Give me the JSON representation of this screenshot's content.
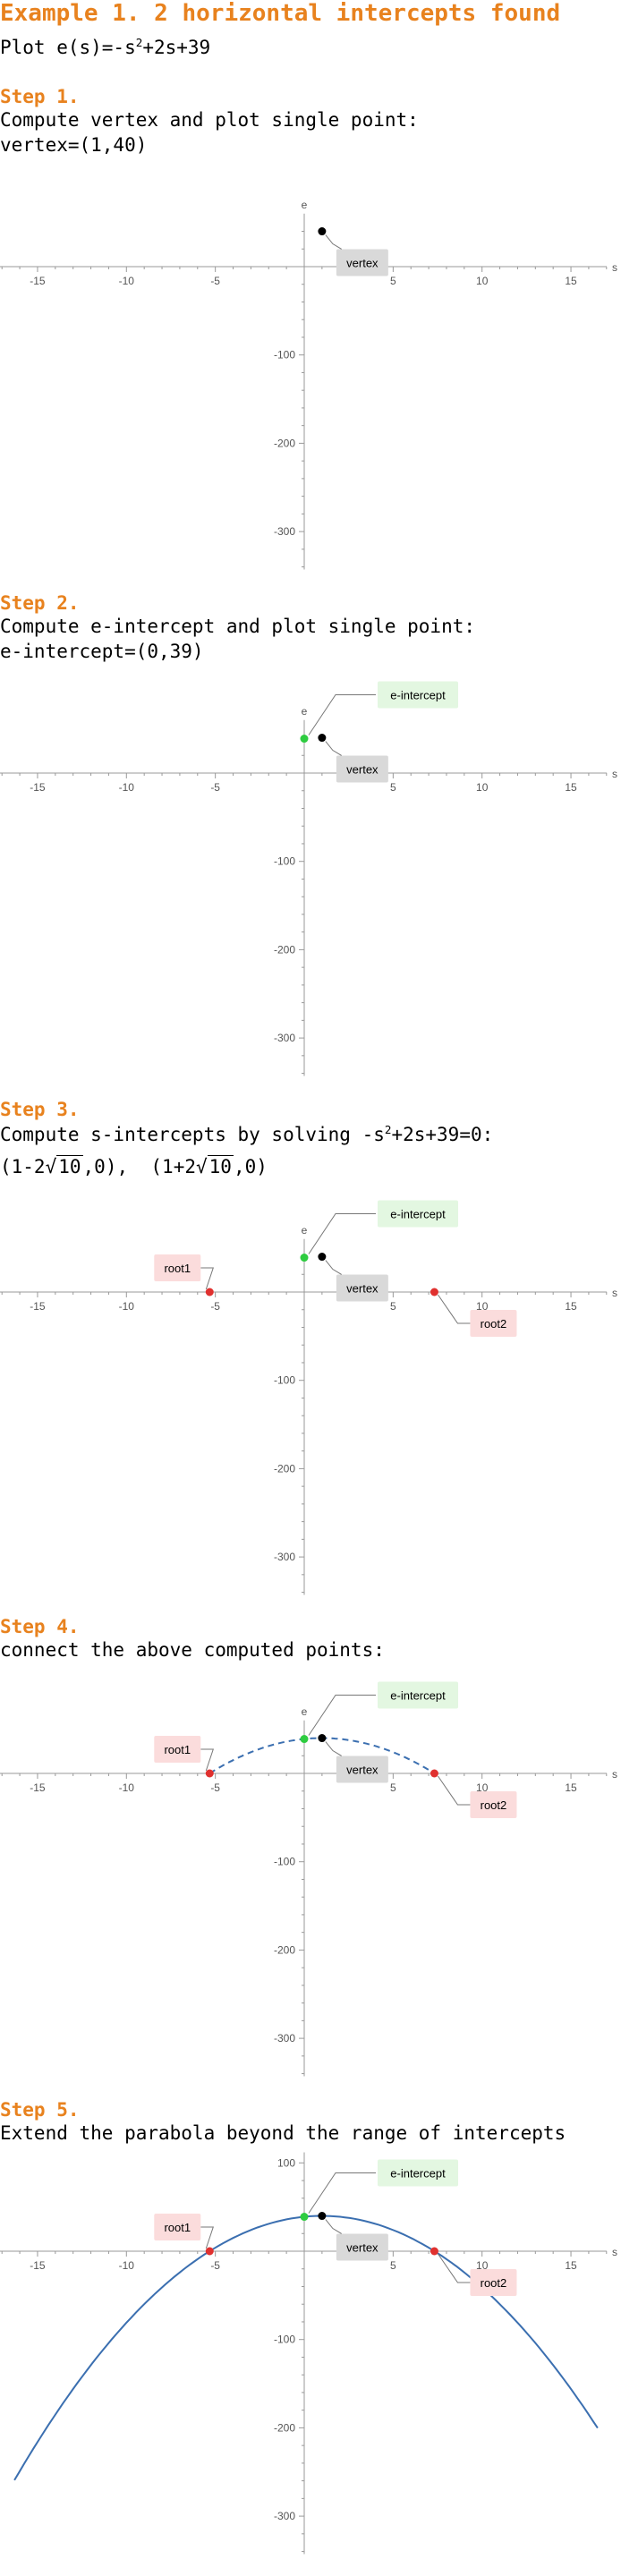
{
  "header": {
    "title": "Example 1. 2 horizontal intercepts found",
    "plot_prefix": "Plot e(s)=-s",
    "plot_exp": "2",
    "plot_suffix": "+2s+39"
  },
  "steps": [
    {
      "heading": "Step 1.",
      "lines": [
        "Compute vertex and plot single point:",
        "vertex=(1,40)"
      ]
    },
    {
      "heading": "Step 2.",
      "lines": [
        "Compute e-intercept and plot single point:",
        "e-intercept=(0,39)"
      ]
    },
    {
      "heading": "Step 3.",
      "line1_prefix": "Compute s-intercepts by solving -s",
      "line1_exp": "2",
      "line1_suffix": "+2s+39=0:",
      "root1_prefix": "(1-2",
      "root1_radical": "10",
      "root1_suffix": ",0),",
      "root2_prefix": "(1+2",
      "root2_radical": "10",
      "root2_suffix": ",0)"
    },
    {
      "heading": "Step 4.",
      "lines": [
        "connect the above computed points:"
      ]
    },
    {
      "heading": "Step 5.",
      "lines": [
        "Extend the parabola beyond the range of intercepts"
      ]
    }
  ],
  "colors": {
    "accent": "#e8821e",
    "curve": "#3b6fb0",
    "vertex": "#000000",
    "e_intercept": "#2ecc40",
    "root": "#e0312f"
  },
  "chart_data": [
    {
      "type": "scatter",
      "step": 1,
      "xlabel": "s",
      "ylabel": "e",
      "x_ticks": [
        -15,
        -10,
        -5,
        5,
        10,
        15
      ],
      "y_ticks": [
        -100,
        -200,
        -300
      ],
      "points": [
        {
          "name": "vertex",
          "x": 1,
          "y": 40,
          "label": "vertex"
        }
      ],
      "curve": "none"
    },
    {
      "type": "scatter",
      "step": 2,
      "xlabel": "s",
      "ylabel": "e",
      "x_ticks": [
        -15,
        -10,
        -5,
        5,
        10,
        15
      ],
      "y_ticks": [
        -100,
        -200,
        -300
      ],
      "points": [
        {
          "name": "vertex",
          "x": 1,
          "y": 40,
          "label": "vertex"
        },
        {
          "name": "e-intercept",
          "x": 0,
          "y": 39,
          "label": "e-intercept"
        }
      ],
      "curve": "none"
    },
    {
      "type": "scatter",
      "step": 3,
      "xlabel": "s",
      "ylabel": "e",
      "x_ticks": [
        -15,
        -10,
        -5,
        5,
        10,
        15
      ],
      "y_ticks": [
        -100,
        -200,
        -300
      ],
      "points": [
        {
          "name": "vertex",
          "x": 1,
          "y": 40,
          "label": "vertex"
        },
        {
          "name": "e-intercept",
          "x": 0,
          "y": 39,
          "label": "e-intercept"
        },
        {
          "name": "root1",
          "x": -5.32,
          "y": 0,
          "label": "root1"
        },
        {
          "name": "root2",
          "x": 7.32,
          "y": 0,
          "label": "root2"
        }
      ],
      "curve": "none"
    },
    {
      "type": "line",
      "step": 4,
      "xlabel": "s",
      "ylabel": "e",
      "x_ticks": [
        -15,
        -10,
        -5,
        5,
        10,
        15
      ],
      "y_ticks": [
        -100,
        -200,
        -300
      ],
      "points": [
        {
          "name": "vertex",
          "x": 1,
          "y": 40,
          "label": "vertex"
        },
        {
          "name": "e-intercept",
          "x": 0,
          "y": 39,
          "label": "e-intercept"
        },
        {
          "name": "root1",
          "x": -5.32,
          "y": 0,
          "label": "root1"
        },
        {
          "name": "root2",
          "x": 7.32,
          "y": 0,
          "label": "root2"
        }
      ],
      "curve": "dashed",
      "curve_range": [
        -5.32,
        7.32
      ]
    },
    {
      "type": "line",
      "step": 5,
      "xlabel": "s",
      "ylabel": "e",
      "x_ticks": [
        -15,
        -10,
        -5,
        5,
        10,
        15
      ],
      "y_ticks": [
        100,
        -100,
        -200,
        -300
      ],
      "points": [
        {
          "name": "vertex",
          "x": 1,
          "y": 40,
          "label": "vertex"
        },
        {
          "name": "e-intercept",
          "x": 0,
          "y": 39,
          "label": "e-intercept"
        },
        {
          "name": "root1",
          "x": -5.32,
          "y": 0,
          "label": "root1"
        },
        {
          "name": "root2",
          "x": 7.32,
          "y": 0,
          "label": "root2"
        }
      ],
      "curve": "solid",
      "curve_range": [
        -16.3,
        16.5
      ]
    }
  ]
}
